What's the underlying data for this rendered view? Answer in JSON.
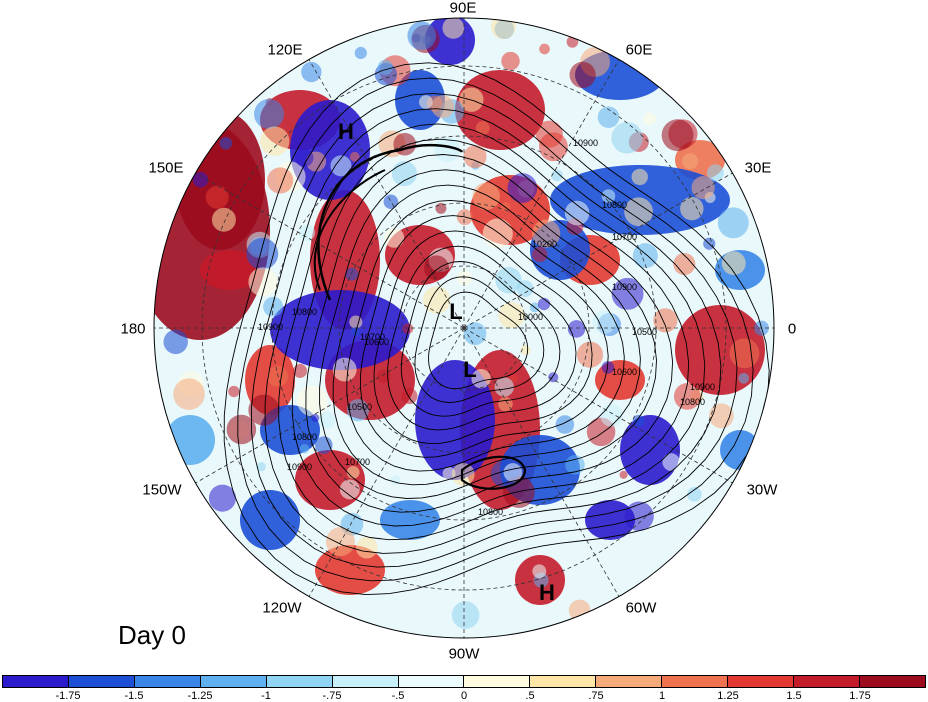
{
  "panel_label": "Day 0",
  "longitude_labels": [
    {
      "text": "90E",
      "name": "label-90e"
    },
    {
      "text": "60E",
      "name": "label-60e"
    },
    {
      "text": "30E",
      "name": "label-30e"
    },
    {
      "text": "0",
      "name": "label-0"
    },
    {
      "text": "30W",
      "name": "label-30w"
    },
    {
      "text": "60W",
      "name": "label-60w"
    },
    {
      "text": "90W",
      "name": "label-90w"
    },
    {
      "text": "120W",
      "name": "label-120w"
    },
    {
      "text": "150W",
      "name": "label-150w"
    },
    {
      "text": "180",
      "name": "label-180"
    },
    {
      "text": "150E",
      "name": "label-150e"
    },
    {
      "text": "120E",
      "name": "label-120e"
    }
  ],
  "pressure_centers": [
    {
      "text": "H",
      "name": "high-center-north-pacific"
    },
    {
      "text": "L",
      "name": "low-center-arctic"
    },
    {
      "text": "L",
      "name": "low-center-hudson"
    },
    {
      "text": "H",
      "name": "high-center-south-america"
    }
  ],
  "contour_labels": [
    "10900",
    "10800",
    "10700",
    "10600",
    "10500",
    "10200",
    "10000",
    "10900",
    "10800",
    "10700",
    "10600",
    "10800",
    "10900",
    "10900",
    "10800",
    "10700",
    "10500",
    "10800",
    "10900"
  ],
  "colorbar": {
    "colors": [
      "#2b1bcc",
      "#1c4fd6",
      "#3a86e8",
      "#5fb0ee",
      "#8fd4f2",
      "#c8f0fa",
      "#ecfbfd",
      "#fffbe0",
      "#fde6a8",
      "#f5aa7a",
      "#ee7150",
      "#e23a32",
      "#c41b2a",
      "#9c0b1e"
    ],
    "tick_labels": [
      "-1.75",
      "-1.5",
      "-1.25",
      "-1",
      "-.75",
      "-.5",
      "0",
      ".5",
      ".75",
      "1",
      "1.25",
      "1.5",
      "1.75"
    ]
  }
}
